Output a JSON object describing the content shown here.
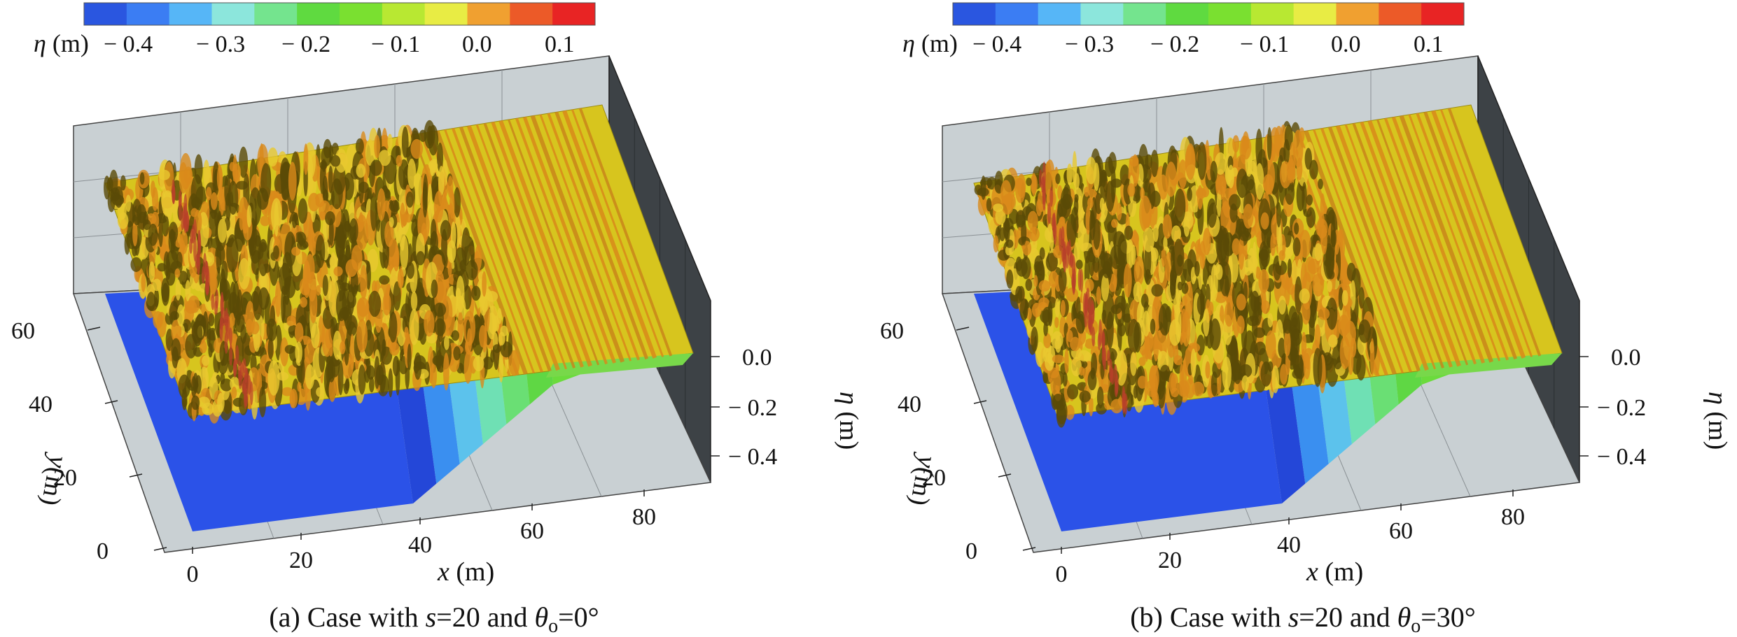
{
  "chart_data": [
    {
      "type": "surface",
      "caption": {
        "prefix": "(a) Case with ",
        "s_sym": "s",
        "s_val": "=20 and ",
        "theta_sym": "θ",
        "theta_sub": "o",
        "theta_val": "=0°"
      },
      "colorbar": {
        "label_sym": "η",
        "label_unit": " (m)",
        "ticks": [
          "− 0.4",
          "− 0.3",
          "− 0.2",
          "− 0.1",
          "0.0",
          "0.1"
        ],
        "colors": [
          "#2a56e0",
          "#3b7df3",
          "#56b6f7",
          "#8ce6dc",
          "#74e48e",
          "#5fda40",
          "#7ae030",
          "#b8e832",
          "#e8ec44",
          "#f0a030",
          "#ec5a28",
          "#e82424"
        ]
      },
      "x_axis": {
        "label_sym": "x",
        "label_unit": " (m)",
        "ticks": [
          "0",
          "20",
          "40",
          "60",
          "80"
        ]
      },
      "y_axis": {
        "label_sym": "y",
        "label_unit": "(m)",
        "ticks": [
          "0",
          "20",
          "40",
          "60"
        ]
      },
      "z_axis": {
        "label_sym": "η",
        "label_unit": " (m)",
        "ticks": [
          "0.0",
          "− 0.2",
          "− 0.4"
        ]
      },
      "colors": {
        "surface": "#d7c51e",
        "crest": "#d98a1a",
        "trough": "#5a4a06",
        "floor": "#2b52e8",
        "wall": "#c9d0d3",
        "dark_wall": "#3d4246"
      }
    },
    {
      "type": "surface",
      "caption": {
        "prefix": "(b) Case with ",
        "s_sym": "s",
        "s_val": "=20 and ",
        "theta_sym": "θ",
        "theta_sub": "o",
        "theta_val": "=30°"
      },
      "colorbar": {
        "label_sym": "η",
        "label_unit": " (m)",
        "ticks": [
          "− 0.4",
          "− 0.3",
          "− 0.2",
          "− 0.1",
          "0.0",
          "0.1"
        ],
        "colors": [
          "#2a56e0",
          "#3b7df3",
          "#56b6f7",
          "#8ce6dc",
          "#74e48e",
          "#5fda40",
          "#7ae030",
          "#b8e832",
          "#e8ec44",
          "#f0a030",
          "#ec5a28",
          "#e82424"
        ]
      },
      "x_axis": {
        "label_sym": "x",
        "label_unit": " (m)",
        "ticks": [
          "0",
          "20",
          "40",
          "60",
          "80"
        ]
      },
      "y_axis": {
        "label_sym": "y",
        "label_unit": "(m)",
        "ticks": [
          "0",
          "20",
          "40",
          "60"
        ]
      },
      "z_axis": {
        "label_sym": "η",
        "label_unit": " (m)",
        "ticks": [
          "0.0",
          "− 0.2",
          "− 0.4"
        ]
      },
      "colors": {
        "surface": "#d7c51e",
        "crest": "#d98a1a",
        "trough": "#5a4a06",
        "floor": "#2b52e8",
        "wall": "#c9d0d3",
        "dark_wall": "#3d4246"
      }
    }
  ]
}
